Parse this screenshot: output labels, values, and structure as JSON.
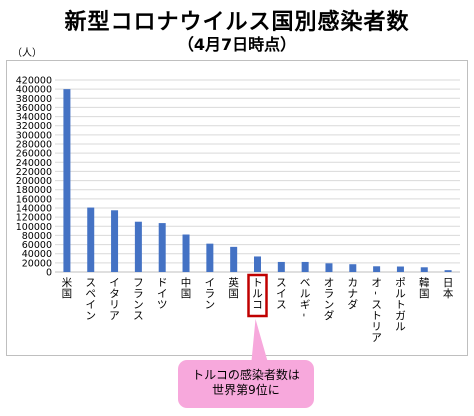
{
  "header": {
    "title": "新型コロナウイルス国別感染者数",
    "subtitle": "（4月7日時点）"
  },
  "callout": {
    "line1": "トルコの感染者数は",
    "line2": "世界第9位に"
  },
  "colors": {
    "bar": "#4472c4",
    "highlight_box": "#c00000",
    "callout_bg": "#f7a8dc",
    "grid": "#d9d9d9"
  },
  "chart_data": {
    "type": "bar",
    "title": "新型コロナウイルス国別感染者数",
    "subtitle": "（4月7日時点）",
    "ylabel": "（人）",
    "xlabel": "",
    "ylim": [
      0,
      420000
    ],
    "yticks": [
      0,
      20000,
      40000,
      60000,
      80000,
      100000,
      120000,
      140000,
      160000,
      180000,
      200000,
      220000,
      240000,
      260000,
      280000,
      300000,
      320000,
      340000,
      360000,
      380000,
      400000,
      420000
    ],
    "grid": true,
    "highlight_category": "トルコ",
    "categories": [
      "米国",
      "スペイン",
      "イタリア",
      "フランス",
      "ドイツ",
      "中国",
      "イラン",
      "英国",
      "トルコ",
      "スイス",
      "ベルギー",
      "オランダ",
      "カナダ",
      "オーストリア",
      "ポルトガル",
      "韓国",
      "日本"
    ],
    "values": [
      400000,
      141000,
      135000,
      110000,
      107000,
      82000,
      62000,
      55000,
      34000,
      22000,
      22000,
      19000,
      17000,
      12500,
      12000,
      10300,
      4000
    ]
  }
}
